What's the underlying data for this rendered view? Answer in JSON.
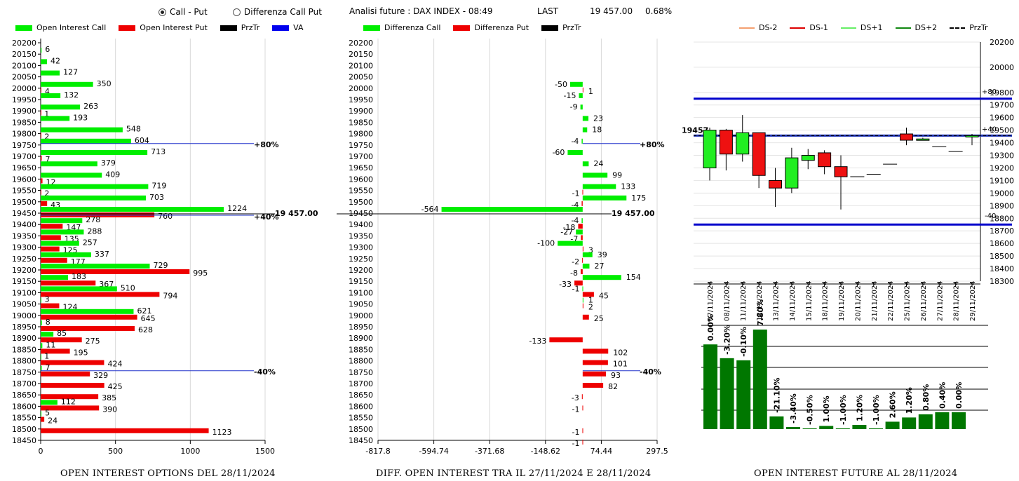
{
  "header": {
    "mode_call_put": "Call - Put",
    "mode_diff": "Differenza Call Put",
    "title": "Analisi future : DAX INDEX - 08:49",
    "last_label": "LAST",
    "last_value": "19 457.00",
    "change": "0.68%"
  },
  "legends": {
    "left": [
      {
        "label": "Open Interest Call",
        "color": "#00ee00",
        "kind": "box"
      },
      {
        "label": "Open Interest Put",
        "color": "#ee0000",
        "kind": "box"
      },
      {
        "label": "PrzTr",
        "color": "#000000",
        "kind": "box"
      },
      {
        "label": "VA",
        "color": "#0000ee",
        "kind": "box"
      }
    ],
    "mid": [
      {
        "label": "Differenza Call",
        "color": "#00ee00",
        "kind": "box"
      },
      {
        "label": "Differenza Put",
        "color": "#ee0000",
        "kind": "box"
      },
      {
        "label": "PrzTr",
        "color": "#000000",
        "kind": "box"
      }
    ],
    "right": [
      {
        "label": "DS-2",
        "color": "#f4a070",
        "kind": "line"
      },
      {
        "label": "DS-1",
        "color": "#dd0000",
        "kind": "line"
      },
      {
        "label": "DS+1",
        "color": "#66ee66",
        "kind": "line"
      },
      {
        "label": "DS+2",
        "color": "#118811",
        "kind": "line"
      },
      {
        "label": "PrzTr",
        "color": "#000000",
        "kind": "dash"
      }
    ]
  },
  "footers": {
    "left": "OPEN INTEREST OPTIONS DEL 28/11/2024",
    "mid": "DIFF. OPEN INTEREST TRA IL 27/11/2024 E 28/11/2024",
    "right": "OPEN INTEREST FUTURE AL 28/11/2024"
  },
  "chart_data": [
    {
      "type": "bar",
      "orientation": "horizontal",
      "categories": [
        "20200",
        "20150",
        "20100",
        "20050",
        "20000",
        "19950",
        "19900",
        "19850",
        "19800",
        "19750",
        "19700",
        "19650",
        "19600",
        "19550",
        "19500",
        "19450",
        "19400",
        "19350",
        "19300",
        "19250",
        "19200",
        "19150",
        "19100",
        "19050",
        "19000",
        "18950",
        "18900",
        "18850",
        "18800",
        "18750",
        "18700",
        "18650",
        "18600",
        "18550",
        "18500",
        "18450"
      ],
      "series": [
        {
          "name": "Open Interest Call",
          "color": "#00ee00",
          "values": [
            null,
            6,
            42,
            127,
            350,
            132,
            263,
            193,
            548,
            604,
            713,
            379,
            409,
            719,
            703,
            1224,
            278,
            288,
            257,
            337,
            729,
            183,
            510,
            3,
            621,
            8,
            85,
            11,
            1,
            7,
            null,
            null,
            112,
            5,
            null,
            null
          ]
        },
        {
          "name": "Open Interest Put",
          "color": "#ee0000",
          "values": [
            null,
            null,
            null,
            null,
            4,
            null,
            1,
            null,
            2,
            null,
            7,
            null,
            12,
            2,
            43,
            760,
            147,
            135,
            125,
            177,
            995,
            367,
            794,
            124,
            645,
            628,
            275,
            195,
            424,
            329,
            425,
            385,
            390,
            24,
            1123,
            null
          ]
        }
      ],
      "xlim": [
        0,
        1500
      ],
      "xticks": [
        "0",
        "500",
        "1000",
        "1500"
      ],
      "annotations": [
        {
          "label": "+80%",
          "category": "19750"
        },
        {
          "label": "19 457.00",
          "category": "19450"
        },
        {
          "label": "+40%",
          "category": "19450"
        },
        {
          "label": "-40%",
          "category": "18750"
        }
      ]
    },
    {
      "type": "bar",
      "orientation": "horizontal",
      "categories": [
        "20200",
        "20150",
        "20100",
        "20050",
        "20000",
        "19950",
        "19900",
        "19850",
        "19800",
        "19750",
        "19700",
        "19650",
        "19600",
        "19550",
        "19500",
        "19450",
        "19400",
        "19350",
        "19300",
        "19250",
        "19200",
        "19150",
        "19100",
        "19050",
        "19000",
        "18950",
        "18900",
        "18850",
        "18800",
        "18750",
        "18700",
        "18650",
        "18600",
        "18550",
        "18500",
        "18450"
      ],
      "series": [
        {
          "name": "Differenza Call",
          "color": "#00ee00",
          "values": [
            null,
            null,
            null,
            null,
            -50,
            -15,
            -9,
            23,
            18,
            -4,
            -60,
            24,
            99,
            133,
            175,
            -564,
            -4,
            -27,
            -100,
            39,
            27,
            154,
            -1,
            1,
            null,
            null,
            null,
            null,
            null,
            null,
            null,
            null,
            null,
            null,
            null,
            null
          ]
        },
        {
          "name": "Differenza Put",
          "color": "#ee0000",
          "values": [
            null,
            null,
            null,
            null,
            1,
            null,
            null,
            null,
            null,
            null,
            null,
            null,
            null,
            -1,
            -4,
            null,
            -18,
            -7,
            3,
            -2,
            -8,
            -33,
            45,
            2,
            25,
            null,
            -133,
            102,
            101,
            93,
            82,
            -3,
            -1,
            null,
            -1,
            -1
          ]
        }
      ],
      "xlim": [
        -817.8,
        297.5
      ],
      "xticks": [
        "-817.8",
        "-594.74",
        "-371.68",
        "-148.62",
        "74.44",
        "297.5"
      ],
      "annotations": [
        {
          "label": "+80%",
          "category": "19750"
        },
        {
          "label": "19 457.00",
          "category": "19450"
        },
        {
          "label": "-40%",
          "category": "18750"
        }
      ]
    },
    {
      "type": "candlestick",
      "categories": [
        "07/11/2024",
        "08/11/2024",
        "11/11/2024",
        "12/11/2024",
        "13/11/2024",
        "14/11/2024",
        "15/11/2024",
        "18/11/2024",
        "19/11/2024",
        "20/11/2024",
        "21/11/2024",
        "22/11/2024",
        "25/11/2024",
        "26/11/2024",
        "27/11/2024",
        "28/11/2024",
        "29/11/2024"
      ],
      "ohlc": [
        {
          "open": 19200,
          "high": 19520,
          "low": 19100,
          "close": 19500
        },
        {
          "open": 19500,
          "high": 19510,
          "low": 19180,
          "close": 19310
        },
        {
          "open": 19310,
          "high": 19620,
          "low": 19250,
          "close": 19480
        },
        {
          "open": 19480,
          "high": 19470,
          "low": 19040,
          "close": 19140
        },
        {
          "open": 19100,
          "high": 19200,
          "low": 18890,
          "close": 19040
        },
        {
          "open": 19040,
          "high": 19360,
          "low": 19000,
          "close": 19280
        },
        {
          "open": 19260,
          "high": 19350,
          "low": 19190,
          "close": 19300
        },
        {
          "open": 19320,
          "high": 19340,
          "low": 19150,
          "close": 19210
        },
        {
          "open": 19210,
          "high": 19300,
          "low": 18870,
          "close": 19130
        },
        {
          "open": 19130,
          "high": 19130,
          "low": 19130,
          "close": 19130
        },
        {
          "open": 19150,
          "high": 19150,
          "low": 19150,
          "close": 19150
        },
        {
          "open": 19230,
          "high": 19230,
          "low": 19230,
          "close": 19230
        },
        {
          "open": 19470,
          "high": 19520,
          "low": 19380,
          "close": 19420
        },
        {
          "open": 19430,
          "high": 19440,
          "low": 19420,
          "close": 19430
        },
        {
          "open": 19370,
          "high": 19370,
          "low": 19370,
          "close": 19370
        },
        {
          "open": 19330,
          "high": 19330,
          "low": 19330,
          "close": 19330
        },
        {
          "open": 19457,
          "high": 19470,
          "low": 19380,
          "close": 19457
        }
      ],
      "last_label": "19457",
      "last": 19457,
      "upper_band": 19750,
      "lower_band": 18750,
      "band_labels": [
        "+80",
        "+40",
        "-40"
      ],
      "ylim": [
        18300,
        20200
      ],
      "yticks": [
        "20200",
        "20000",
        "19800",
        "19700",
        "19600",
        "19500",
        "19400",
        "19300",
        "19200",
        "19100",
        "19000",
        "18900",
        "18800",
        "18700",
        "18600",
        "18500",
        "18400",
        "18300"
      ],
      "ytick_values": [
        20200,
        20000,
        19800,
        19700,
        19600,
        19500,
        19400,
        19300,
        19200,
        19100,
        19000,
        18900,
        18800,
        18700,
        18600,
        18500,
        18400,
        18300
      ]
    },
    {
      "type": "bar",
      "labels": [
        "0.00%",
        "-3.20%",
        "-0.10%",
        "7.80%",
        "-21.10%",
        "-3.40%",
        "-0.50%",
        "1.00%",
        "-1.00%",
        "1.20%",
        "-1.00%",
        "2.60%",
        "1.20%",
        "0.80%",
        "0.40%",
        "0.00%"
      ],
      "relative_heights": [
        0.8,
        0.67,
        0.65,
        0.94,
        0.12,
        0.02,
        0.0,
        0.03,
        0.0,
        0.04,
        0.0,
        0.07,
        0.11,
        0.14,
        0.16,
        0.16
      ],
      "color": "#007700"
    }
  ]
}
